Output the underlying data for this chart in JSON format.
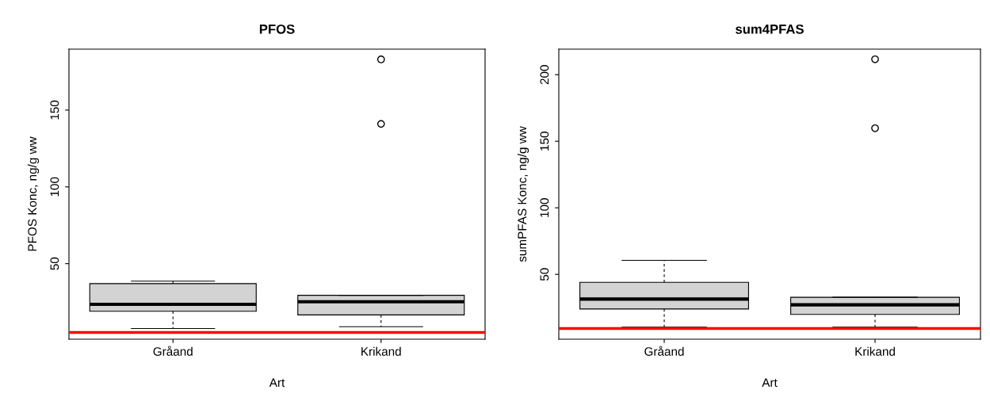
{
  "chart_data": [
    {
      "type": "box",
      "title": "PFOS",
      "xlabel": "Art",
      "ylabel": "PFOS Konc, ng/g ww",
      "categories": [
        "Gråand",
        "Krikand"
      ],
      "boxes": [
        {
          "low": 7.8,
          "q1": 19.0,
          "median": 23.5,
          "q3": 37.0,
          "high": 38.6
        },
        {
          "low": 8.9,
          "q1": 16.6,
          "median": 25.2,
          "q3": 29.4,
          "high": 29.4,
          "outliers": [
            141.0,
            183.0
          ]
        }
      ],
      "color": "#d3d3d3",
      "ylim": [
        0.8,
        189.7
      ],
      "yticks": [
        50,
        100,
        150
      ],
      "grid": false,
      "ref_lines": [
        {
          "axis": "y",
          "value": 5.2,
          "color": "#ff0000"
        }
      ]
    },
    {
      "type": "box",
      "title": "sum4PFAS",
      "xlabel": "Art",
      "ylabel": "sumPFAS Konc, ng/g ww",
      "categories": [
        "Gråand",
        "Krikand"
      ],
      "boxes": [
        {
          "low": 10.4,
          "q1": 24.0,
          "median": 31.4,
          "q3": 44.0,
          "high": 60.5
        },
        {
          "low": 10.4,
          "q1": 19.9,
          "median": 27.1,
          "q3": 32.8,
          "high": 32.8,
          "outliers": [
            159.8,
            211.6
          ]
        }
      ],
      "color": "#d3d3d3",
      "ylim": [
        1.3,
        219.2
      ],
      "yticks": [
        50,
        100,
        150,
        200
      ],
      "grid": false,
      "ref_lines": [
        {
          "axis": "y",
          "value": 9.4,
          "color": "#ff0000"
        }
      ]
    }
  ]
}
